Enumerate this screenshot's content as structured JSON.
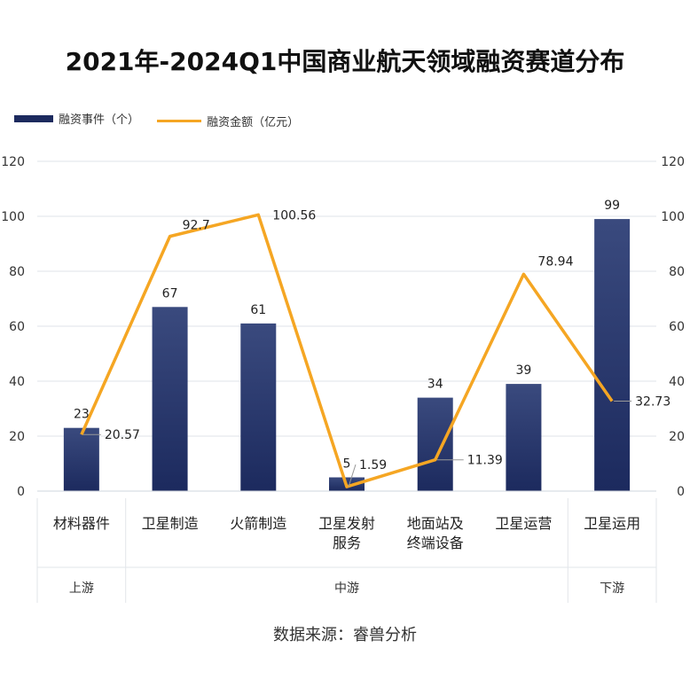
{
  "chart_data": {
    "type": "bar",
    "title": "2021年-2024Q1中国商业航天领域融资赛道分布",
    "categories": [
      "材料器件",
      "卫星制造",
      "火箭制造",
      "卫星发射服务",
      "地面站及终端设备",
      "卫星运营",
      "卫星运用"
    ],
    "category_lines": [
      [
        "材料器件"
      ],
      [
        "卫星制造"
      ],
      [
        "火箭制造"
      ],
      [
        "卫星发射",
        "服务"
      ],
      [
        "地面站及",
        "终端设备"
      ],
      [
        "卫星运营"
      ],
      [
        "卫星运用"
      ]
    ],
    "groups": [
      {
        "label": "上游",
        "span": [
          0,
          0
        ]
      },
      {
        "label": "中游",
        "span": [
          1,
          5
        ]
      },
      {
        "label": "下游",
        "span": [
          6,
          6
        ]
      }
    ],
    "series": [
      {
        "name": "融资事件（个）",
        "type": "bar",
        "values": [
          23,
          67,
          61,
          5,
          34,
          39,
          99
        ],
        "color": "#1c2a5e"
      },
      {
        "name": "融资金额（亿元）",
        "type": "line",
        "values": [
          20.57,
          92.7,
          100.56,
          1.59,
          11.39,
          78.94,
          32.73
        ],
        "color": "#f5a623"
      }
    ],
    "bar_labels": [
      "23",
      "67",
      "61",
      "5",
      "34",
      "39",
      "99"
    ],
    "line_labels": [
      "20.57",
      "92.7",
      "100.56",
      "1.59",
      "11.39",
      "78.94",
      "32.73"
    ],
    "ylim": [
      0,
      120
    ],
    "yticks": [
      "0",
      "20",
      "40",
      "60",
      "80",
      "100",
      "120"
    ],
    "grid": true,
    "legend": "top-left"
  },
  "source": "数据来源：睿兽分析"
}
